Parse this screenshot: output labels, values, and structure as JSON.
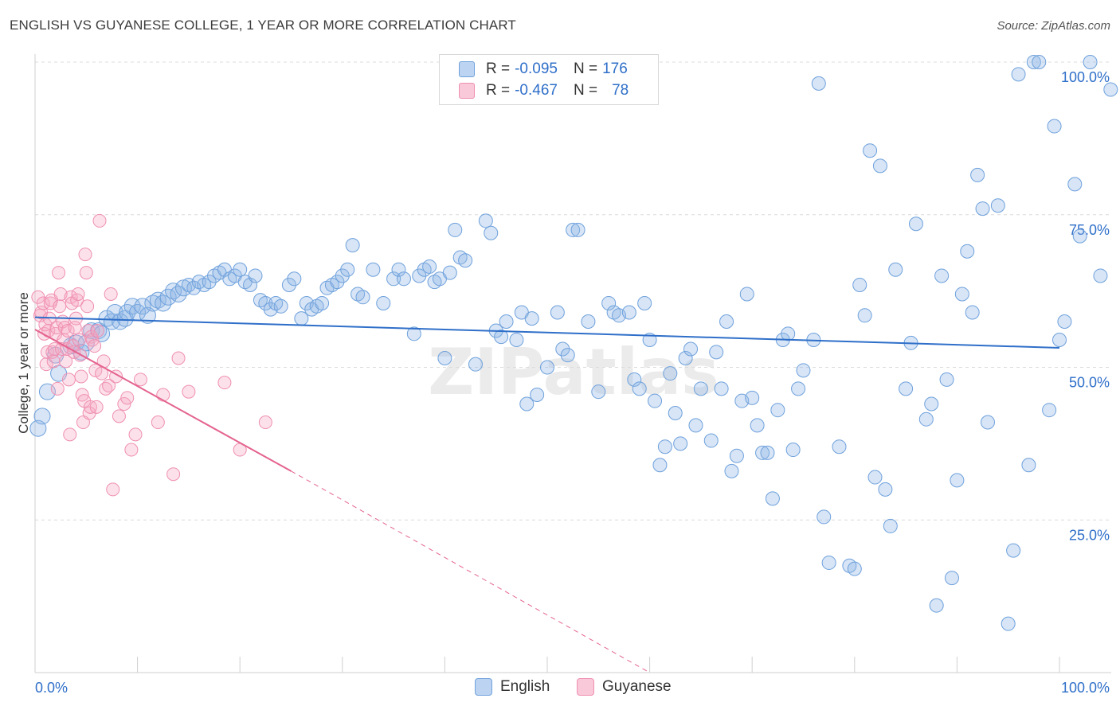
{
  "title": "ENGLISH VS GUYANESE COLLEGE, 1 YEAR OR MORE CORRELATION CHART",
  "source": "Source: ZipAtlas.com",
  "watermark": "ZIPatlas",
  "legend": {
    "english": {
      "r_label": "R =",
      "r_value": "-0.095",
      "n_label": "N =",
      "n_value": "176"
    },
    "guyanese": {
      "r_label": "R =",
      "r_value": "-0.467",
      "n_label": "N =",
      "n_value": "78"
    }
  },
  "bottom_legend": {
    "english": "English",
    "guyanese": "Guyanese"
  },
  "colors": {
    "english": "#6fa1dc",
    "english_line": "#2f6fc9",
    "guyanese": "#ef8fb1",
    "guyanese_line": "#e4638f",
    "tick_text": "#2f6fc9"
  },
  "chart_data": {
    "type": "scatter",
    "title": "ENGLISH VS GUYANESE COLLEGE, 1 YEAR OR MORE CORRELATION CHART",
    "xlabel": "",
    "ylabel": "College, 1 year or more",
    "xlim": [
      0,
      100
    ],
    "ylim": [
      0,
      100
    ],
    "x_tick_labels": [
      "0.0%",
      "100.0%"
    ],
    "y_ticks": [
      25,
      50,
      75,
      100
    ],
    "y_tick_labels": [
      "25.0%",
      "50.0%",
      "75.0%",
      "100.0%"
    ],
    "series": [
      {
        "name": "English",
        "r": -0.095,
        "n": 176,
        "trend": {
          "x0": 0,
          "y0": 58.2,
          "x1": 100,
          "y1": 53.2
        },
        "points": [
          [
            0.3,
            40.0
          ],
          [
            0.7,
            42.0
          ],
          [
            1.2,
            46.0
          ],
          [
            2.3,
            49.0
          ],
          [
            2.0,
            52.0
          ],
          [
            3.5,
            53.5
          ],
          [
            4.0,
            54.0
          ],
          [
            4.5,
            52.5
          ],
          [
            5.0,
            54.0
          ],
          [
            5.5,
            56.0
          ],
          [
            6.2,
            56.0
          ],
          [
            6.5,
            55.5
          ],
          [
            7.0,
            58.0
          ],
          [
            7.5,
            57.5
          ],
          [
            7.8,
            59.0
          ],
          [
            8.3,
            57.5
          ],
          [
            8.8,
            58.0
          ],
          [
            9.0,
            59.0
          ],
          [
            9.5,
            60.0
          ],
          [
            10.0,
            59.0
          ],
          [
            10.5,
            60.0
          ],
          [
            11.0,
            58.5
          ],
          [
            11.5,
            60.5
          ],
          [
            12.0,
            61.0
          ],
          [
            12.5,
            60.5
          ],
          [
            13.0,
            61.5
          ],
          [
            13.5,
            62.5
          ],
          [
            14.0,
            62.0
          ],
          [
            14.5,
            63.0
          ],
          [
            15.0,
            63.5
          ],
          [
            15.5,
            63.0
          ],
          [
            16.0,
            64.0
          ],
          [
            16.5,
            63.5
          ],
          [
            17.0,
            64.0
          ],
          [
            17.5,
            65.0
          ],
          [
            18.0,
            65.5
          ],
          [
            18.5,
            66.0
          ],
          [
            19.0,
            64.5
          ],
          [
            19.5,
            65.0
          ],
          [
            20.0,
            66.0
          ],
          [
            20.5,
            64.0
          ],
          [
            21.0,
            63.5
          ],
          [
            21.5,
            65.0
          ],
          [
            22.0,
            61.0
          ],
          [
            22.5,
            60.5
          ],
          [
            23.0,
            59.5
          ],
          [
            23.5,
            60.5
          ],
          [
            24.0,
            60.0
          ],
          [
            24.8,
            63.5
          ],
          [
            25.3,
            64.5
          ],
          [
            26.0,
            58.0
          ],
          [
            26.5,
            60.5
          ],
          [
            27.0,
            59.5
          ],
          [
            27.5,
            60.0
          ],
          [
            28.0,
            60.5
          ],
          [
            28.5,
            63.0
          ],
          [
            29.0,
            63.5
          ],
          [
            29.5,
            64.0
          ],
          [
            30.0,
            65.0
          ],
          [
            30.5,
            66.0
          ],
          [
            31.0,
            70.0
          ],
          [
            31.5,
            62.0
          ],
          [
            32.0,
            61.5
          ],
          [
            33.0,
            66.0
          ],
          [
            34.0,
            60.5
          ],
          [
            35.0,
            64.5
          ],
          [
            35.5,
            66.0
          ],
          [
            36.0,
            64.5
          ],
          [
            37.0,
            55.5
          ],
          [
            37.5,
            65.0
          ],
          [
            38.0,
            66.0
          ],
          [
            38.5,
            66.5
          ],
          [
            39.0,
            64.0
          ],
          [
            39.5,
            64.5
          ],
          [
            40.0,
            51.5
          ],
          [
            40.5,
            65.5
          ],
          [
            41.0,
            72.5
          ],
          [
            41.5,
            68.0
          ],
          [
            42.0,
            67.5
          ],
          [
            43.0,
            50.5
          ],
          [
            44.0,
            74.0
          ],
          [
            44.5,
            72.0
          ],
          [
            45.0,
            56.0
          ],
          [
            45.5,
            55.0
          ],
          [
            46.0,
            57.5
          ],
          [
            47.0,
            54.5
          ],
          [
            47.5,
            59.0
          ],
          [
            48.0,
            44.0
          ],
          [
            48.5,
            58.0
          ],
          [
            49.0,
            45.5
          ],
          [
            50.0,
            50.0
          ],
          [
            51.0,
            59.0
          ],
          [
            51.5,
            53.0
          ],
          [
            52.0,
            52.0
          ],
          [
            52.5,
            72.5
          ],
          [
            53.0,
            72.5
          ],
          [
            54.0,
            57.5
          ],
          [
            55.0,
            46.0
          ],
          [
            56.0,
            60.5
          ],
          [
            56.5,
            59.0
          ],
          [
            57.0,
            58.5
          ],
          [
            58.0,
            59.0
          ],
          [
            58.5,
            48.0
          ],
          [
            59.0,
            46.5
          ],
          [
            59.5,
            60.5
          ],
          [
            60.0,
            54.5
          ],
          [
            60.5,
            44.5
          ],
          [
            61.0,
            34.0
          ],
          [
            61.5,
            37.0
          ],
          [
            62.0,
            49.0
          ],
          [
            62.5,
            42.5
          ],
          [
            63.0,
            37.5
          ],
          [
            63.5,
            51.5
          ],
          [
            64.0,
            53.0
          ],
          [
            64.5,
            40.5
          ],
          [
            65.0,
            46.5
          ],
          [
            66.0,
            38.0
          ],
          [
            66.5,
            52.5
          ],
          [
            67.0,
            46.5
          ],
          [
            67.5,
            57.5
          ],
          [
            68.0,
            33.0
          ],
          [
            68.5,
            35.5
          ],
          [
            69.0,
            44.5
          ],
          [
            69.5,
            62.0
          ],
          [
            70.0,
            45.0
          ],
          [
            70.5,
            40.5
          ],
          [
            71.0,
            36.0
          ],
          [
            71.5,
            36.0
          ],
          [
            72.0,
            28.5
          ],
          [
            72.5,
            43.0
          ],
          [
            73.0,
            54.5
          ],
          [
            73.5,
            55.5
          ],
          [
            74.0,
            36.5
          ],
          [
            74.5,
            46.5
          ],
          [
            75.0,
            49.5
          ],
          [
            76.0,
            54.5
          ],
          [
            76.5,
            96.5
          ],
          [
            77.0,
            25.5
          ],
          [
            77.5,
            18.0
          ],
          [
            78.5,
            37.0
          ],
          [
            79.5,
            17.5
          ],
          [
            80.0,
            17.0
          ],
          [
            80.5,
            63.5
          ],
          [
            81.0,
            58.5
          ],
          [
            81.5,
            85.5
          ],
          [
            82.0,
            32.0
          ],
          [
            82.5,
            83.0
          ],
          [
            83.0,
            30.0
          ],
          [
            83.5,
            24.0
          ],
          [
            84.0,
            66.0
          ],
          [
            85.0,
            46.5
          ],
          [
            85.5,
            54.0
          ],
          [
            86.0,
            73.5
          ],
          [
            87.0,
            41.5
          ],
          [
            87.5,
            44.0
          ],
          [
            88.0,
            11.0
          ],
          [
            88.5,
            65.0
          ],
          [
            89.0,
            48.0
          ],
          [
            89.5,
            15.5
          ],
          [
            90.0,
            31.5
          ],
          [
            90.5,
            62.0
          ],
          [
            91.0,
            69.0
          ],
          [
            91.5,
            59.0
          ],
          [
            92.0,
            81.5
          ],
          [
            92.5,
            76.0
          ],
          [
            93.0,
            41.0
          ],
          [
            94.0,
            76.5
          ],
          [
            95.0,
            8.0
          ],
          [
            95.5,
            20.0
          ],
          [
            96.0,
            98.0
          ],
          [
            97.0,
            34.0
          ],
          [
            97.5,
            100.0
          ],
          [
            98.0,
            100.0
          ],
          [
            99.0,
            43.0
          ],
          [
            99.5,
            89.5
          ],
          [
            100.0,
            54.5
          ],
          [
            100.5,
            57.5
          ],
          [
            101.5,
            80.0
          ],
          [
            102.0,
            71.5
          ],
          [
            103.0,
            100.0
          ],
          [
            104.0,
            65.0
          ],
          [
            105.0,
            95.5
          ]
        ]
      },
      {
        "name": "Guyanese",
        "r": -0.467,
        "n": 78,
        "trend": {
          "x0": 0,
          "y0": 56.2,
          "x1": 25,
          "y1": 33.0,
          "dash_to": {
            "x": 60,
            "y": 0
          }
        },
        "points": [
          [
            0.3,
            61.5
          ],
          [
            0.5,
            58.5
          ],
          [
            0.6,
            59.0
          ],
          [
            0.8,
            60.5
          ],
          [
            0.9,
            55.5
          ],
          [
            1.0,
            57.0
          ],
          [
            1.1,
            50.5
          ],
          [
            1.2,
            52.5
          ],
          [
            1.3,
            56.0
          ],
          [
            1.4,
            58.0
          ],
          [
            1.5,
            60.5
          ],
          [
            1.6,
            61.0
          ],
          [
            1.7,
            52.5
          ],
          [
            1.8,
            51.0
          ],
          [
            1.9,
            53.0
          ],
          [
            2.0,
            55.5
          ],
          [
            2.1,
            56.5
          ],
          [
            2.2,
            46.5
          ],
          [
            2.3,
            65.5
          ],
          [
            2.4,
            60.0
          ],
          [
            2.5,
            62.0
          ],
          [
            2.6,
            53.0
          ],
          [
            2.7,
            57.5
          ],
          [
            2.8,
            54.5
          ],
          [
            2.9,
            56.5
          ],
          [
            3.0,
            51.0
          ],
          [
            3.1,
            53.0
          ],
          [
            3.2,
            56.0
          ],
          [
            3.3,
            48.0
          ],
          [
            3.4,
            39.0
          ],
          [
            3.5,
            61.5
          ],
          [
            3.6,
            60.5
          ],
          [
            3.7,
            53.5
          ],
          [
            3.8,
            52.5
          ],
          [
            3.9,
            56.5
          ],
          [
            4.0,
            58.0
          ],
          [
            4.1,
            61.0
          ],
          [
            4.2,
            62.0
          ],
          [
            4.3,
            54.5
          ],
          [
            4.4,
            52.0
          ],
          [
            4.5,
            48.5
          ],
          [
            4.6,
            45.5
          ],
          [
            4.7,
            41.0
          ],
          [
            4.8,
            44.5
          ],
          [
            4.9,
            68.5
          ],
          [
            5.0,
            65.5
          ],
          [
            5.1,
            60.0
          ],
          [
            5.2,
            56.0
          ],
          [
            5.3,
            42.5
          ],
          [
            5.4,
            43.5
          ],
          [
            5.5,
            55.0
          ],
          [
            5.6,
            54.5
          ],
          [
            5.8,
            53.5
          ],
          [
            5.9,
            49.5
          ],
          [
            6.0,
            43.5
          ],
          [
            6.1,
            56.0
          ],
          [
            6.3,
            74.0
          ],
          [
            6.5,
            49.0
          ],
          [
            6.7,
            51.0
          ],
          [
            6.9,
            46.5
          ],
          [
            7.2,
            47.0
          ],
          [
            7.4,
            62.0
          ],
          [
            7.6,
            30.0
          ],
          [
            7.9,
            48.5
          ],
          [
            8.2,
            42.0
          ],
          [
            8.7,
            44.0
          ],
          [
            9.0,
            45.0
          ],
          [
            9.4,
            36.5
          ],
          [
            9.8,
            39.0
          ],
          [
            10.3,
            48.0
          ],
          [
            12.0,
            41.0
          ],
          [
            12.5,
            45.5
          ],
          [
            13.5,
            32.5
          ],
          [
            14.0,
            51.5
          ],
          [
            15.0,
            46.0
          ],
          [
            18.5,
            47.5
          ],
          [
            20.0,
            36.5
          ],
          [
            22.5,
            41.0
          ]
        ]
      }
    ]
  }
}
